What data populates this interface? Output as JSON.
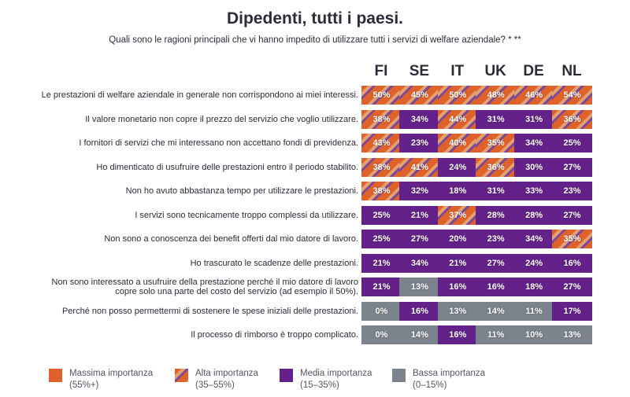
{
  "title": "Dipedenti, tutti i paesi.",
  "subtitle": "Quali sono le ragioni principali che vi hanno impedito di utilizzare tutti i servizi di welfare aziendale? * **",
  "chart_data": {
    "type": "table",
    "title": "Dipedenti, tutti i paesi.",
    "countries": [
      "FI",
      "SE",
      "IT",
      "UK",
      "DE",
      "NL"
    ],
    "rows": [
      {
        "label": "Le prestazioni di welfare aziendale in generale non corrispondono ai miei interessi.",
        "values": [
          "50%",
          "45%",
          "50%",
          "48%",
          "46%",
          "54%"
        ],
        "categories": [
          "alta",
          "alta",
          "alta",
          "alta",
          "alta",
          "alta"
        ]
      },
      {
        "label": "Il valore monetario non copre il prezzo del servizio che voglio utilizzare.",
        "values": [
          "38%",
          "34%",
          "44%",
          "31%",
          "31%",
          "36%"
        ],
        "categories": [
          "alta",
          "media",
          "alta",
          "media",
          "media",
          "alta"
        ]
      },
      {
        "label": "I fornitori di servizi che mi interessano non accettano fondi di previdenza.",
        "values": [
          "43%",
          "23%",
          "40%",
          "35%",
          "34%",
          "25%"
        ],
        "categories": [
          "alta",
          "media",
          "alta",
          "alta",
          "media",
          "media"
        ]
      },
      {
        "label": "Ho dimenticato di usufruire delle prestazioni entro il periodo stabilito.",
        "values": [
          "38%",
          "41%",
          "24%",
          "36%",
          "30%",
          "27%"
        ],
        "categories": [
          "alta",
          "alta",
          "media",
          "alta",
          "media",
          "media"
        ]
      },
      {
        "label": "Non ho avuto abbastanza tempo per utilizzare le prestazioni.",
        "values": [
          "38%",
          "32%",
          "18%",
          "31%",
          "33%",
          "23%"
        ],
        "categories": [
          "alta",
          "media",
          "media",
          "media",
          "media",
          "media"
        ]
      },
      {
        "label": "I servizi sono tecnicamente troppo complessi da utilizzare.",
        "values": [
          "25%",
          "21%",
          "37%",
          "28%",
          "28%",
          "27%"
        ],
        "categories": [
          "media",
          "media",
          "alta",
          "media",
          "media",
          "media"
        ]
      },
      {
        "label": "Non sono a conoscenza dei benefit offerti dal mio datore di lavoro.",
        "values": [
          "25%",
          "27%",
          "20%",
          "23%",
          "34%",
          "35%"
        ],
        "categories": [
          "media",
          "media",
          "media",
          "media",
          "media",
          "alta"
        ]
      },
      {
        "label": "Ho trascurato le scadenze delle prestazioni.",
        "values": [
          "21%",
          "34%",
          "21%",
          "27%",
          "24%",
          "16%"
        ],
        "categories": [
          "media",
          "media",
          "media",
          "media",
          "media",
          "media"
        ]
      },
      {
        "label": "Non sono interessato a usufruire della prestazione perché il mio datore di lavoro copre solo una parte del costo del servizio (ad esempio il 50%).",
        "values": [
          "21%",
          "13%",
          "16%",
          "16%",
          "18%",
          "27%"
        ],
        "categories": [
          "media",
          "bassa",
          "media",
          "media",
          "media",
          "media"
        ]
      },
      {
        "label": "Perché non posso permettermi di sostenere le spese iniziali delle prestazioni.",
        "values": [
          "0%",
          "16%",
          "13%",
          "14%",
          "11%",
          "17%"
        ],
        "categories": [
          "bassa",
          "media",
          "bassa",
          "bassa",
          "bassa",
          "media"
        ]
      },
      {
        "label": "Il processo di rimborso è troppo complicato.",
        "values": [
          "0%",
          "14%",
          "16%",
          "11%",
          "10%",
          "13%"
        ],
        "categories": [
          "bassa",
          "bassa",
          "media",
          "bassa",
          "bassa",
          "bassa"
        ]
      }
    ]
  },
  "legend": [
    {
      "key": "high",
      "name": "Massima importanza",
      "range": "(55%+)"
    },
    {
      "key": "alta",
      "name": "Alta importanza",
      "range": "(35–55%)"
    },
    {
      "key": "media",
      "name": "Media importanza",
      "range": "(15–35%)"
    },
    {
      "key": "bassa",
      "name": "Bassa importanza",
      "range": "(0–15%)"
    }
  ],
  "colors": {
    "massima": "#e0622b",
    "media": "#64218a",
    "bassa": "#7b838c"
  }
}
